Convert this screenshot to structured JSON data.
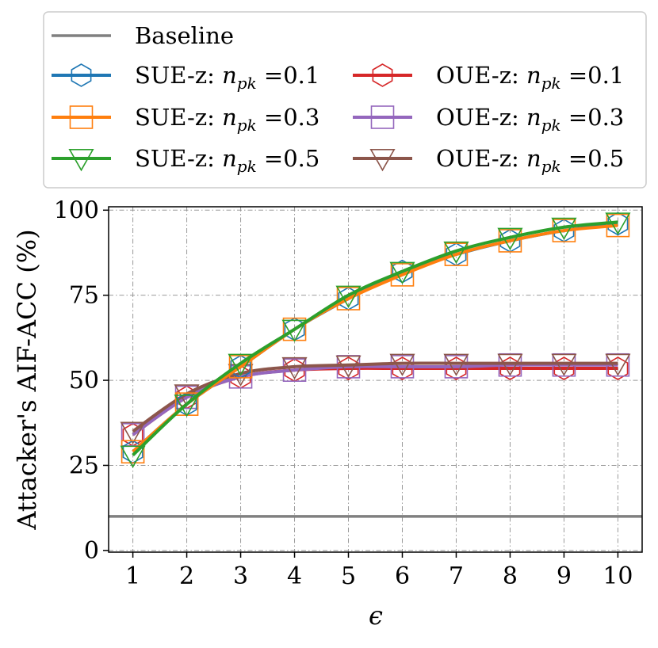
{
  "chart_data": {
    "type": "line",
    "xlabel": "ϵ",
    "ylabel": "Attacker's AIF-ACC (%)",
    "x": [
      1,
      2,
      3,
      4,
      5,
      6,
      7,
      8,
      9,
      10
    ],
    "x_ticks": [
      "1",
      "2",
      "3",
      "4",
      "5",
      "6",
      "7",
      "8",
      "9",
      "10"
    ],
    "y_ticks": [
      "0",
      "25",
      "50",
      "75",
      "100"
    ],
    "xlim": [
      0.55,
      10.45
    ],
    "ylim": [
      -0.5,
      101
    ],
    "grid": true,
    "legend_position": "top",
    "baseline": {
      "name": "Baseline",
      "value": 10,
      "color": "#808080"
    },
    "series": [
      {
        "name": "SUE-z: n_pk =0.1",
        "label_prefix": "SUE-z: ",
        "label_n": "n",
        "label_sub": "pk",
        "label_suffix": " =0.1",
        "color": "#1f77b4",
        "marker": "hexagon",
        "values": [
          29,
          43,
          54,
          65,
          74,
          82,
          87,
          91,
          94,
          96
        ]
      },
      {
        "name": "SUE-z: n_pk =0.3",
        "label_prefix": "SUE-z: ",
        "label_n": "n",
        "label_sub": "pk",
        "label_suffix": " =0.3",
        "color": "#ff7f0e",
        "marker": "square",
        "values": [
          29,
          43,
          54,
          65,
          74,
          81,
          87,
          91,
          94,
          95.5
        ]
      },
      {
        "name": "SUE-z: n_pk =0.5",
        "label_prefix": "SUE-z: ",
        "label_n": "n",
        "label_sub": "pk",
        "label_suffix": " =0.5",
        "color": "#2ca02c",
        "marker": "triangle-down",
        "values": [
          28,
          43,
          55,
          65,
          75,
          82,
          88,
          92,
          95,
          96.5
        ]
      },
      {
        "name": "OUE-z: n_pk =0.1",
        "label_prefix": "OUE-z: ",
        "label_n": "n",
        "label_sub": "pk",
        "label_suffix": " =0.1",
        "color": "#d62728",
        "marker": "hexagon",
        "values": [
          34,
          45,
          51,
          53,
          53.5,
          53.5,
          53.5,
          53.5,
          53.5,
          53.5
        ]
      },
      {
        "name": "OUE-z: n_pk =0.3",
        "label_prefix": "OUE-z: ",
        "label_n": "n",
        "label_sub": "pk",
        "label_suffix": " =0.3",
        "color": "#9467bd",
        "marker": "square",
        "values": [
          34,
          45,
          51,
          53,
          54,
          54,
          54,
          54.5,
          54.5,
          54.5
        ]
      },
      {
        "name": "OUE-z: n_pk =0.5",
        "label_prefix": "OUE-z: ",
        "label_n": "n",
        "label_sub": "pk",
        "label_suffix": " =0.5",
        "color": "#8c564b",
        "marker": "triangle-down",
        "values": [
          35,
          46,
          52,
          54,
          54.5,
          55,
          55,
          55,
          55,
          55
        ]
      }
    ]
  }
}
